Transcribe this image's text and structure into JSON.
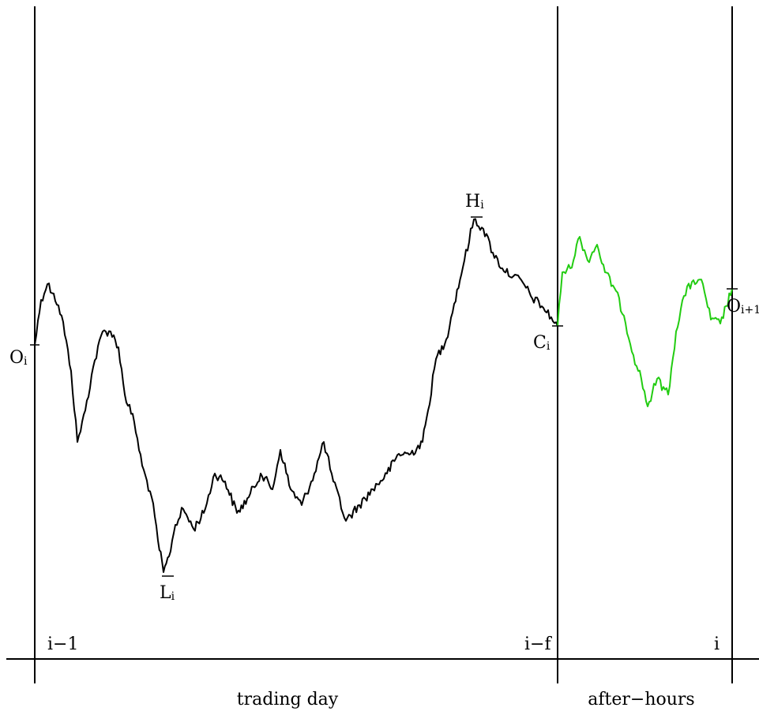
{
  "labels": {
    "open": "O",
    "open_sub": "i",
    "high": "H",
    "high_sub": "i",
    "low": "L",
    "low_sub": "i",
    "close": "C",
    "close_sub": "i",
    "next_open": "O",
    "next_open_sub": "i+1"
  },
  "time_axis": {
    "tick_prev_day": "i−1",
    "tick_close": "i−f",
    "tick_next_day": "i",
    "period_trading": "trading day",
    "period_after_hours": "after−hours"
  },
  "colors": {
    "trading_path": "#000000",
    "after_hours_path": "#22cc11",
    "axes": "#000000"
  }
}
